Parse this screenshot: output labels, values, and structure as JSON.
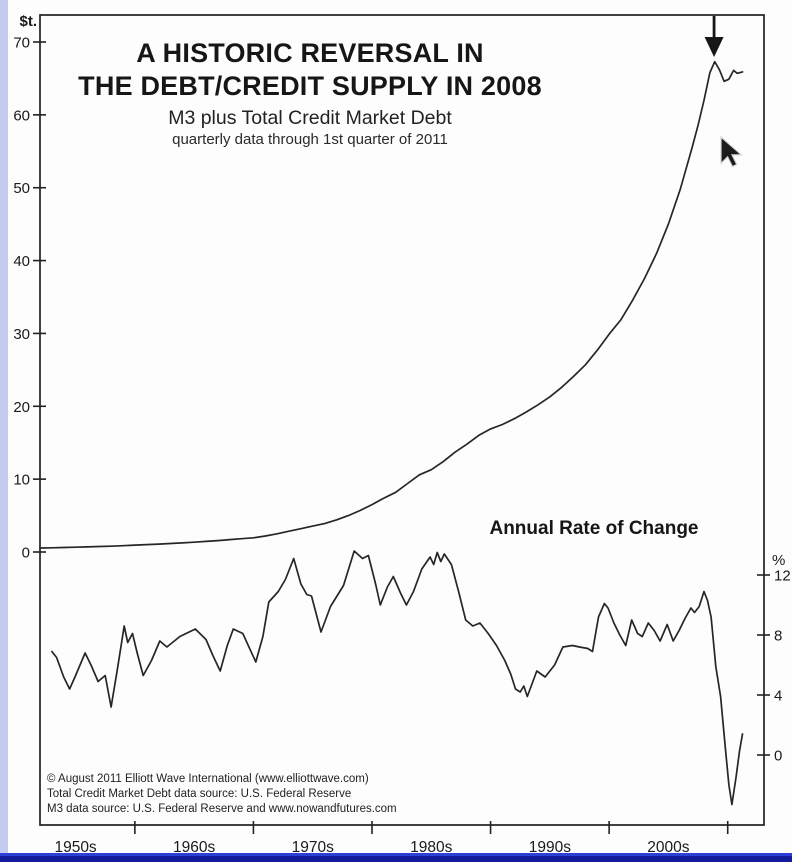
{
  "window": {
    "left_edge_color": "#c5cbef",
    "bottom_edge_highlight_color": "#2c3fd6",
    "bottom_edge_color": "#131b9b"
  },
  "chart": {
    "title_line1": "A HISTORIC REVERSAL IN",
    "title_line2": "THE DEBT/CREDIT SUPPLY IN 2008",
    "subtitle": "M3 plus Total Credit Market Debt",
    "note": "quarterly data through 1st quarter of 2011",
    "left_axis_unit": "$t.",
    "right_axis_unit": "%",
    "rate_label": "Annual Rate of Change",
    "footnotes": [
      "© August 2011 Elliott Wave International (www.elliottwave.com)",
      "Total Credit Market Debt data source: U.S. Federal Reserve",
      "M3 data source: U.S. Federal Reserve and www.nowandfutures.com"
    ]
  },
  "chart_data": {
    "type": "line",
    "title": "A HISTORIC REVERSAL IN THE DEBT/CREDIT SUPPLY IN 2008",
    "subtitle": "M3 plus Total Credit Market Debt",
    "note": "quarterly data through 1st quarter of 2011",
    "grid": false,
    "x_axis": {
      "range_years": [
        1952,
        2012.2
      ],
      "tick_years": [
        1960,
        1970,
        1980,
        1990,
        2000,
        2010
      ],
      "decade_labels": [
        {
          "text": "1950s",
          "center_year": 1955
        },
        {
          "text": "1960s",
          "center_year": 1965
        },
        {
          "text": "1970s",
          "center_year": 1975
        },
        {
          "text": "1980s",
          "center_year": 1985
        },
        {
          "text": "1990s",
          "center_year": 1995
        },
        {
          "text": "2000s",
          "center_year": 2005
        }
      ]
    },
    "left_axis": {
      "unit": "$ trillions",
      "ticks": [
        0,
        10,
        20,
        30,
        40,
        50,
        60,
        70
      ],
      "range": [
        0,
        70
      ]
    },
    "right_axis": {
      "unit": "percent",
      "ticks": [
        0,
        4,
        8,
        12
      ]
    },
    "annotation_arrow": {
      "year": 2008.85,
      "meaning": "2008 peak / historic reversal"
    },
    "series": [
      {
        "name": "M3 plus Total Credit Market Debt ($ trillions)",
        "axis": "left",
        "points": [
          [
            1952,
            0.55
          ],
          [
            1953,
            0.58
          ],
          [
            1954,
            0.62
          ],
          [
            1955,
            0.66
          ],
          [
            1956,
            0.7
          ],
          [
            1957,
            0.75
          ],
          [
            1958,
            0.8
          ],
          [
            1959,
            0.87
          ],
          [
            1960,
            0.95
          ],
          [
            1961,
            1.01
          ],
          [
            1962,
            1.08
          ],
          [
            1963,
            1.16
          ],
          [
            1964,
            1.25
          ],
          [
            1965,
            1.35
          ],
          [
            1966,
            1.45
          ],
          [
            1967,
            1.57
          ],
          [
            1968,
            1.7
          ],
          [
            1969,
            1.83
          ],
          [
            1970,
            1.95
          ],
          [
            1971,
            2.2
          ],
          [
            1972,
            2.5
          ],
          [
            1973,
            2.85
          ],
          [
            1974,
            3.2
          ],
          [
            1975,
            3.55
          ],
          [
            1976,
            3.9
          ],
          [
            1977,
            4.4
          ],
          [
            1978,
            5.0
          ],
          [
            1979,
            5.7
          ],
          [
            1980,
            6.5
          ],
          [
            1981,
            7.4
          ],
          [
            1982,
            8.2
          ],
          [
            1983,
            9.4
          ],
          [
            1984,
            10.6
          ],
          [
            1985,
            11.3
          ],
          [
            1986,
            12.4
          ],
          [
            1987,
            13.7
          ],
          [
            1988,
            14.8
          ],
          [
            1989,
            16.0
          ],
          [
            1990,
            16.9
          ],
          [
            1991,
            17.5
          ],
          [
            1992,
            18.3
          ],
          [
            1993,
            19.2
          ],
          [
            1994,
            20.2
          ],
          [
            1995,
            21.3
          ],
          [
            1996,
            22.6
          ],
          [
            1997,
            24.1
          ],
          [
            1998,
            25.7
          ],
          [
            1999,
            27.7
          ],
          [
            2000,
            29.9
          ],
          [
            2001,
            31.9
          ],
          [
            2002,
            34.6
          ],
          [
            2003,
            37.6
          ],
          [
            2004,
            41.0
          ],
          [
            2005,
            45.0
          ],
          [
            2006,
            49.8
          ],
          [
            2007,
            55.5
          ],
          [
            2007.5,
            58.6
          ],
          [
            2008,
            62.0
          ],
          [
            2008.5,
            65.8
          ],
          [
            2008.9,
            67.3
          ],
          [
            2009.3,
            66.2
          ],
          [
            2009.7,
            64.6
          ],
          [
            2010.1,
            64.9
          ],
          [
            2010.5,
            66.1
          ],
          [
            2010.8,
            65.7
          ],
          [
            2011.25,
            65.9
          ]
        ]
      },
      {
        "name": "Annual Rate of Change (%)",
        "axis": "right",
        "points": [
          [
            1953.0,
            6.9
          ],
          [
            1953.4,
            6.5
          ],
          [
            1954.0,
            5.2
          ],
          [
            1954.5,
            4.4
          ],
          [
            1955.0,
            5.3
          ],
          [
            1955.8,
            6.8
          ],
          [
            1956.3,
            6.0
          ],
          [
            1956.9,
            4.9
          ],
          [
            1957.5,
            5.3
          ],
          [
            1958.0,
            3.2
          ],
          [
            1958.5,
            5.6
          ],
          [
            1959.1,
            8.6
          ],
          [
            1959.4,
            7.5
          ],
          [
            1959.8,
            8.1
          ],
          [
            1960.2,
            6.8
          ],
          [
            1960.7,
            5.3
          ],
          [
            1961.4,
            6.3
          ],
          [
            1962.1,
            7.6
          ],
          [
            1962.7,
            7.2
          ],
          [
            1963.8,
            7.9
          ],
          [
            1965.1,
            8.4
          ],
          [
            1966.0,
            7.7
          ],
          [
            1966.6,
            6.6
          ],
          [
            1967.2,
            5.6
          ],
          [
            1967.8,
            7.3
          ],
          [
            1968.3,
            8.4
          ],
          [
            1969.1,
            8.1
          ],
          [
            1970.2,
            6.2
          ],
          [
            1970.8,
            7.9
          ],
          [
            1971.3,
            10.2
          ],
          [
            1972.1,
            10.9
          ],
          [
            1972.7,
            11.7
          ],
          [
            1973.4,
            13.1
          ],
          [
            1974.0,
            11.4
          ],
          [
            1974.5,
            10.7
          ],
          [
            1974.9,
            10.6
          ],
          [
            1975.7,
            8.2
          ],
          [
            1976.5,
            9.9
          ],
          [
            1977.6,
            11.3
          ],
          [
            1978.5,
            13.6
          ],
          [
            1979.2,
            13.1
          ],
          [
            1979.7,
            13.3
          ],
          [
            1980.3,
            11.4
          ],
          [
            1980.7,
            10.0
          ],
          [
            1981.3,
            11.2
          ],
          [
            1981.8,
            11.9
          ],
          [
            1982.4,
            10.8
          ],
          [
            1982.9,
            10.0
          ],
          [
            1983.5,
            10.9
          ],
          [
            1984.2,
            12.4
          ],
          [
            1984.9,
            13.2
          ],
          [
            1985.2,
            12.7
          ],
          [
            1985.5,
            13.5
          ],
          [
            1985.8,
            12.9
          ],
          [
            1986.1,
            13.4
          ],
          [
            1986.7,
            12.7
          ],
          [
            1987.3,
            10.9
          ],
          [
            1987.9,
            9.0
          ],
          [
            1988.5,
            8.6
          ],
          [
            1989.1,
            8.8
          ],
          [
            1989.8,
            8.1
          ],
          [
            1990.5,
            7.3
          ],
          [
            1991.2,
            6.3
          ],
          [
            1991.7,
            5.4
          ],
          [
            1992.1,
            4.4
          ],
          [
            1992.5,
            4.2
          ],
          [
            1992.8,
            4.6
          ],
          [
            1993.1,
            3.9
          ],
          [
            1993.9,
            5.6
          ],
          [
            1994.6,
            5.2
          ],
          [
            1995.4,
            6.0
          ],
          [
            1996.1,
            7.2
          ],
          [
            1996.9,
            7.3
          ],
          [
            1997.5,
            7.2
          ],
          [
            1998.2,
            7.1
          ],
          [
            1998.6,
            6.9
          ],
          [
            1999.1,
            9.2
          ],
          [
            1999.6,
            10.1
          ],
          [
            1999.9,
            9.8
          ],
          [
            2000.4,
            8.8
          ],
          [
            2000.9,
            8.0
          ],
          [
            2001.4,
            7.3
          ],
          [
            2001.9,
            9.0
          ],
          [
            2002.4,
            8.1
          ],
          [
            2002.8,
            7.9
          ],
          [
            2003.3,
            8.8
          ],
          [
            2003.8,
            8.3
          ],
          [
            2004.3,
            7.6
          ],
          [
            2004.9,
            8.7
          ],
          [
            2005.4,
            7.6
          ],
          [
            2005.9,
            8.3
          ],
          [
            2006.4,
            9.1
          ],
          [
            2006.9,
            9.8
          ],
          [
            2007.2,
            9.5
          ],
          [
            2007.6,
            9.9
          ],
          [
            2008.0,
            10.9
          ],
          [
            2008.3,
            10.3
          ],
          [
            2008.6,
            9.2
          ],
          [
            2009.0,
            5.9
          ],
          [
            2009.4,
            3.9
          ],
          [
            2009.8,
            0.5
          ],
          [
            2010.1,
            -2.0
          ],
          [
            2010.35,
            -3.3
          ],
          [
            2010.7,
            -1.5
          ],
          [
            2011.0,
            0.3
          ],
          [
            2011.25,
            1.4
          ]
        ]
      }
    ]
  }
}
